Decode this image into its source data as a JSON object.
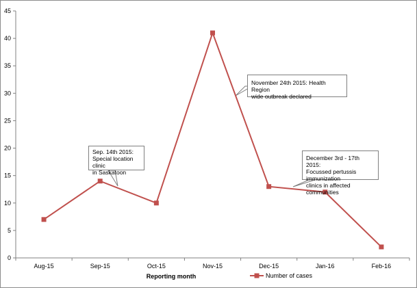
{
  "chart_data": {
    "type": "line",
    "title": "",
    "xlabel": "Reporting month",
    "ylabel": "",
    "categories": [
      "Aug-15",
      "Sep-15",
      "Oct-15",
      "Nov-15",
      "Dec-15",
      "Jan-16",
      "Feb-16"
    ],
    "series": [
      {
        "name": "Number of cases",
        "values": [
          7,
          14,
          10,
          41,
          13,
          12,
          2
        ],
        "color": "#c0504d"
      }
    ],
    "ylim": [
      0,
      45
    ],
    "yticks": [
      0,
      5,
      10,
      15,
      20,
      25,
      30,
      35,
      40,
      45
    ],
    "grid": false,
    "legend_position": "bottom",
    "annotations": [
      {
        "id": "sep",
        "text_lines": [
          "Sep. 14th 2015:",
          "Special location clinic",
          "in Saskatoon"
        ],
        "points_to": "Sep-15"
      },
      {
        "id": "nov",
        "text_lines": [
          "November 24th 2015: Health Region",
          "wide outbreak declared"
        ],
        "points_to": "Nov-15"
      },
      {
        "id": "dec",
        "text_lines": [
          "December 3rd - 17th 2015:",
          "Focussed pertussis immunization",
          "clinics in affected communities"
        ],
        "points_to": "Dec-15"
      }
    ]
  }
}
